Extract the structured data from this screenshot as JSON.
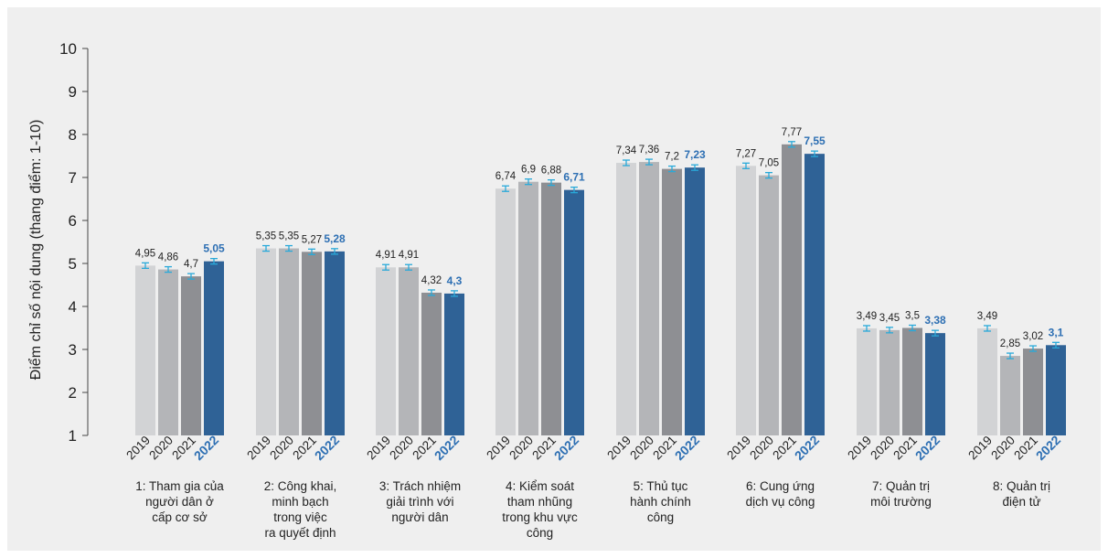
{
  "chart_data": {
    "type": "bar",
    "ylabel": "Điểm chỉ số nội dung (thang điểm: 1-10)",
    "ylim": [
      1,
      10
    ],
    "yticks": [
      "1",
      "2",
      "3",
      "4",
      "5",
      "6",
      "7",
      "8",
      "9",
      "10"
    ],
    "years": [
      "2019",
      "2020",
      "2021",
      "2022"
    ],
    "highlight_year_index": 3,
    "series_colors": [
      "#d2d3d5",
      "#b4b5b8",
      "#8e8f93",
      "#2f6296"
    ],
    "highlight_color": "#2d6fb3",
    "error_bar_color": "#29a9d9",
    "categories": [
      {
        "label": [
          "1: Tham gia của",
          "người dân ở",
          "cấp cơ sở"
        ],
        "values": [
          4.95,
          4.86,
          4.7,
          5.05
        ],
        "value_labels": [
          "4,95",
          "4,86",
          "4,7",
          "5,05"
        ]
      },
      {
        "label": [
          "2: Công khai,",
          "minh bạch",
          "trong việc",
          "ra quyết định"
        ],
        "values": [
          5.35,
          5.35,
          5.27,
          5.28
        ],
        "value_labels": [
          "5,35",
          "5,35",
          "5,27",
          "5,28"
        ]
      },
      {
        "label": [
          "3: Trách nhiệm",
          "giải trình với",
          "người dân"
        ],
        "values": [
          4.91,
          4.91,
          4.32,
          4.3
        ],
        "value_labels": [
          "4,91",
          "4,91",
          "4,32",
          "4,3"
        ]
      },
      {
        "label": [
          "4: Kiểm soát",
          "tham nhũng",
          "trong khu vực",
          "công"
        ],
        "values": [
          6.74,
          6.9,
          6.88,
          6.71
        ],
        "value_labels": [
          "6,74",
          "6,9",
          "6,88",
          "6,71"
        ]
      },
      {
        "label": [
          "5: Thủ tục",
          "hành chính",
          "công"
        ],
        "values": [
          7.34,
          7.36,
          7.2,
          7.23
        ],
        "value_labels": [
          "7,34",
          "7,36",
          "7,2",
          "7,23"
        ]
      },
      {
        "label": [
          "6: Cung ứng",
          "dịch vụ công"
        ],
        "values": [
          7.27,
          7.05,
          7.77,
          7.55
        ],
        "value_labels": [
          "7,27",
          "7,05",
          "7,77",
          "7,55"
        ]
      },
      {
        "label": [
          "7: Quản trị",
          "môi trường"
        ],
        "values": [
          3.49,
          3.45,
          3.5,
          3.38
        ],
        "value_labels": [
          "3,49",
          "3,45",
          "3,5",
          "3,38"
        ]
      },
      {
        "label": [
          "8: Quản trị",
          "điện tử"
        ],
        "values": [
          3.49,
          2.85,
          3.02,
          3.1
        ],
        "value_labels": [
          "3,49",
          "2,85",
          "3,02",
          "3,1"
        ]
      }
    ]
  }
}
